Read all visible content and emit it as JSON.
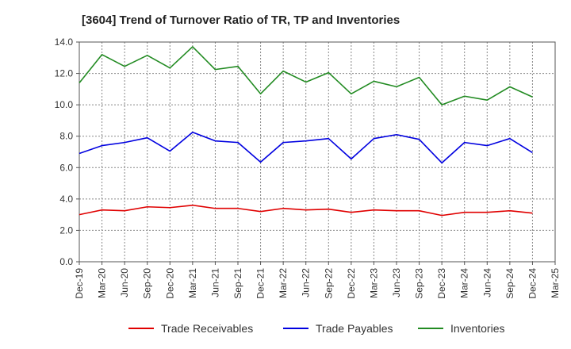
{
  "chart_data": {
    "type": "line",
    "title": "[3604]  Trend of Turnover Ratio of TR, TP and Inventories",
    "xlabel": "",
    "ylabel": "",
    "ylim": [
      0,
      14
    ],
    "yticks": [
      "0.0",
      "2.0",
      "4.0",
      "6.0",
      "8.0",
      "10.0",
      "12.0",
      "14.0"
    ],
    "xticks": [
      "Dec-19",
      "Mar-20",
      "Jun-20",
      "Sep-20",
      "Dec-20",
      "Mar-21",
      "Jun-21",
      "Sep-21",
      "Dec-21",
      "Mar-22",
      "Jun-22",
      "Sep-22",
      "Dec-22",
      "Mar-23",
      "Jun-23",
      "Sep-23",
      "Dec-23",
      "Mar-24",
      "Jun-24",
      "Sep-24",
      "Dec-24",
      "Mar-25"
    ],
    "x": [
      "Dec-19",
      "Mar-20",
      "Jun-20",
      "Sep-20",
      "Dec-20",
      "Mar-21",
      "Jun-21",
      "Sep-21",
      "Dec-21",
      "Mar-22",
      "Jun-22",
      "Sep-22",
      "Dec-22",
      "Mar-23",
      "Jun-23",
      "Sep-23",
      "Dec-23",
      "Mar-24",
      "Jun-24",
      "Sep-24",
      "Dec-24"
    ],
    "grid": true,
    "legend_position": "bottom",
    "series": [
      {
        "name": "Trade Receivables",
        "color": "#e00000",
        "values": [
          3.0,
          3.3,
          3.25,
          3.5,
          3.45,
          3.6,
          3.4,
          3.4,
          3.2,
          3.4,
          3.3,
          3.35,
          3.15,
          3.3,
          3.25,
          3.25,
          2.95,
          3.15,
          3.15,
          3.25,
          3.1
        ]
      },
      {
        "name": "Trade Payables",
        "color": "#0000e0",
        "values": [
          6.9,
          7.4,
          7.6,
          7.9,
          7.05,
          8.25,
          7.7,
          7.6,
          6.35,
          7.6,
          7.7,
          7.85,
          6.55,
          7.85,
          8.1,
          7.8,
          6.3,
          7.6,
          7.4,
          7.85,
          6.95
        ]
      },
      {
        "name": "Inventories",
        "color": "#228b22",
        "values": [
          11.4,
          13.2,
          12.45,
          13.15,
          12.35,
          13.7,
          12.25,
          12.45,
          10.7,
          12.15,
          11.45,
          12.05,
          10.7,
          11.5,
          11.15,
          11.75,
          10.0,
          10.55,
          10.3,
          11.15,
          10.5
        ]
      }
    ]
  }
}
